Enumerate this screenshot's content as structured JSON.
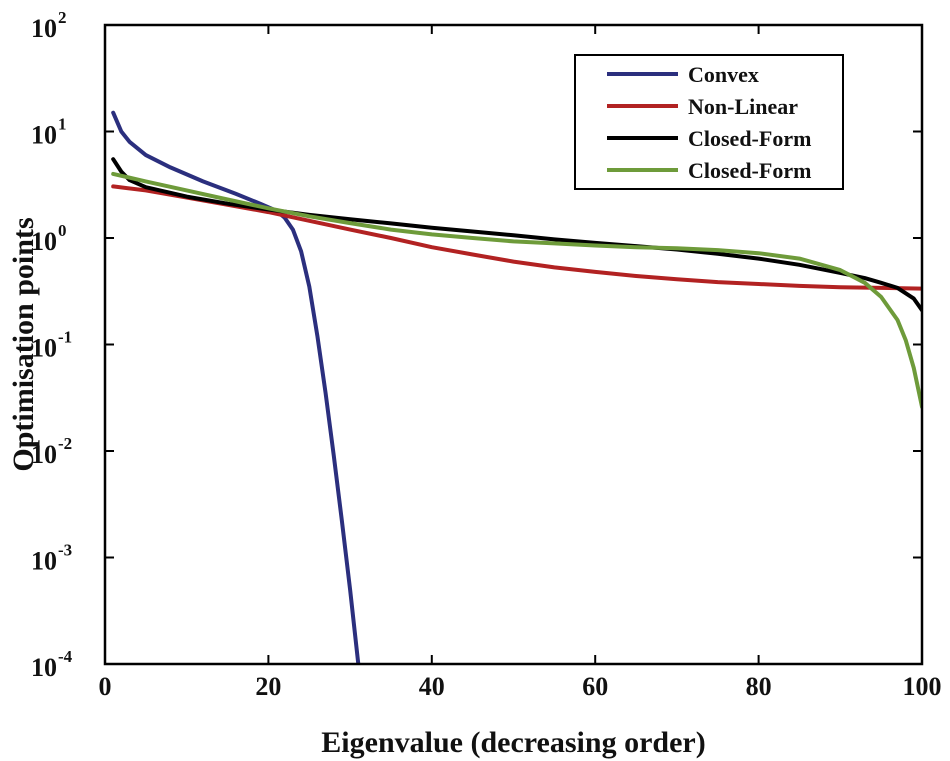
{
  "chart_data": {
    "type": "line",
    "title": "",
    "xlabel": "Eigenvalue (decreasing order)",
    "ylabel": "Optimisation points",
    "xlim": [
      0,
      100
    ],
    "ylim": [
      0.0001,
      100
    ],
    "yscale": "log",
    "grid": false,
    "legend_position": "top-right",
    "x_ticks": [
      {
        "value": 0,
        "label": "0"
      },
      {
        "value": 20,
        "label": "20"
      },
      {
        "value": 40,
        "label": "40"
      },
      {
        "value": 60,
        "label": "60"
      },
      {
        "value": 80,
        "label": "80"
      },
      {
        "value": 100,
        "label": "100"
      }
    ],
    "y_ticks": [
      {
        "value": 100,
        "base": "10",
        "exp": "2"
      },
      {
        "value": 10,
        "base": "10",
        "exp": "1"
      },
      {
        "value": 1,
        "base": "10",
        "exp": "0"
      },
      {
        "value": 0.1,
        "base": "10",
        "exp": "-1"
      },
      {
        "value": 0.01,
        "base": "10",
        "exp": "-2"
      },
      {
        "value": 0.001,
        "base": "10",
        "exp": "-3"
      },
      {
        "value": 0.0001,
        "base": "10",
        "exp": "-4"
      }
    ],
    "series": [
      {
        "name": "Convex",
        "color": "#2b2f7e",
        "points": [
          [
            1,
            15
          ],
          [
            2,
            10
          ],
          [
            3,
            8
          ],
          [
            5,
            6
          ],
          [
            8,
            4.6
          ],
          [
            12,
            3.4
          ],
          [
            16,
            2.6
          ],
          [
            19,
            2.1
          ],
          [
            21,
            1.8
          ],
          [
            22,
            1.55
          ],
          [
            23,
            1.2
          ],
          [
            24,
            0.75
          ],
          [
            25,
            0.35
          ],
          [
            26,
            0.12
          ],
          [
            27,
            0.035
          ],
          [
            28,
            0.009
          ],
          [
            29,
            0.0022
          ],
          [
            30,
            0.0005
          ],
          [
            31,
            0.0001
          ]
        ]
      },
      {
        "name": "Non-Linear",
        "color": "#b22222",
        "points": [
          [
            1,
            3.05
          ],
          [
            5,
            2.8
          ],
          [
            10,
            2.4
          ],
          [
            15,
            2.05
          ],
          [
            20,
            1.75
          ],
          [
            25,
            1.45
          ],
          [
            30,
            1.2
          ],
          [
            35,
            1.0
          ],
          [
            40,
            0.82
          ],
          [
            45,
            0.7
          ],
          [
            50,
            0.6
          ],
          [
            55,
            0.53
          ],
          [
            60,
            0.48
          ],
          [
            65,
            0.44
          ],
          [
            70,
            0.41
          ],
          [
            75,
            0.385
          ],
          [
            80,
            0.37
          ],
          [
            85,
            0.355
          ],
          [
            90,
            0.345
          ],
          [
            95,
            0.34
          ],
          [
            100,
            0.335
          ]
        ]
      },
      {
        "name": "Closed-Form",
        "color": "#000000",
        "points": [
          [
            1,
            5.5
          ],
          [
            2,
            4.2
          ],
          [
            3,
            3.5
          ],
          [
            5,
            3.0
          ],
          [
            10,
            2.45
          ],
          [
            15,
            2.1
          ],
          [
            20,
            1.85
          ],
          [
            25,
            1.65
          ],
          [
            30,
            1.5
          ],
          [
            35,
            1.37
          ],
          [
            40,
            1.25
          ],
          [
            45,
            1.15
          ],
          [
            50,
            1.06
          ],
          [
            55,
            0.97
          ],
          [
            60,
            0.9
          ],
          [
            65,
            0.84
          ],
          [
            70,
            0.78
          ],
          [
            75,
            0.71
          ],
          [
            80,
            0.64
          ],
          [
            85,
            0.56
          ],
          [
            90,
            0.47
          ],
          [
            93,
            0.42
          ],
          [
            95,
            0.38
          ],
          [
            97,
            0.34
          ],
          [
            99,
            0.27
          ],
          [
            100,
            0.21
          ]
        ]
      },
      {
        "name": "Closed-Form",
        "color": "#6e9b3a",
        "points": [
          [
            1,
            4.0
          ],
          [
            5,
            3.4
          ],
          [
            10,
            2.8
          ],
          [
            15,
            2.3
          ],
          [
            20,
            1.9
          ],
          [
            25,
            1.6
          ],
          [
            30,
            1.38
          ],
          [
            35,
            1.2
          ],
          [
            40,
            1.08
          ],
          [
            45,
            1.0
          ],
          [
            50,
            0.93
          ],
          [
            55,
            0.89
          ],
          [
            60,
            0.85
          ],
          [
            65,
            0.82
          ],
          [
            70,
            0.8
          ],
          [
            75,
            0.77
          ],
          [
            80,
            0.72
          ],
          [
            85,
            0.64
          ],
          [
            90,
            0.5
          ],
          [
            93,
            0.38
          ],
          [
            95,
            0.28
          ],
          [
            97,
            0.17
          ],
          [
            98,
            0.11
          ],
          [
            99,
            0.06
          ],
          [
            100,
            0.026
          ]
        ]
      }
    ]
  }
}
